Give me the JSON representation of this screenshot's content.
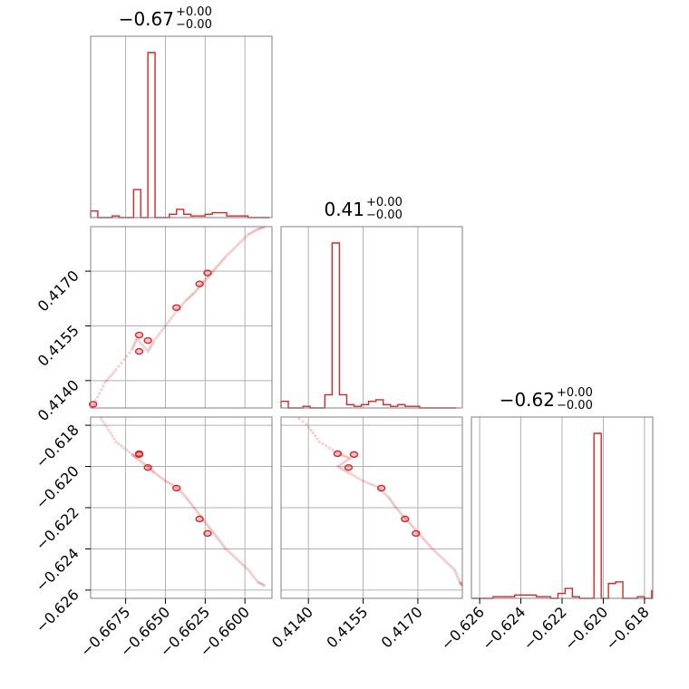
{
  "figure": {
    "accent_color": "#d62728"
  },
  "chart_data": {
    "type": "corner",
    "parameters": [
      {
        "title_value": "−0.67",
        "title_plus": "+0.00",
        "title_minus": "−0.00",
        "range": [
          -0.6697,
          -0.6583
        ],
        "ticks": [
          {
            "value": -0.6675,
            "label": "−0.6675"
          },
          {
            "value": -0.665,
            "label": "−0.6650"
          },
          {
            "value": -0.6625,
            "label": "−0.6625"
          },
          {
            "value": -0.66,
            "label": "−0.6600"
          }
        ],
        "hist_edges": [
          -0.6697,
          -0.66925,
          -0.6688,
          -0.66835,
          -0.6679,
          -0.66745,
          -0.667,
          -0.66655,
          -0.6661,
          -0.66565,
          -0.6652,
          -0.66475,
          -0.6643,
          -0.66385,
          -0.6634,
          -0.66295,
          -0.6625,
          -0.66205,
          -0.6616,
          -0.66115,
          -0.6607,
          -0.66025,
          -0.6598,
          -0.65935,
          -0.6589,
          -0.65845
        ],
        "hist_counts": [
          4,
          0,
          0,
          1,
          0,
          0,
          17,
          0,
          100,
          0,
          0,
          2,
          5,
          2,
          1,
          1,
          2,
          3,
          3,
          1,
          1,
          1,
          0,
          0,
          0
        ]
      },
      {
        "title_value": "0.41",
        "title_plus": "+0.00",
        "title_minus": "−0.00",
        "range": [
          0.41325,
          0.41822
        ],
        "ticks": [
          {
            "value": 0.414,
            "label": "0.4140"
          },
          {
            "value": 0.4155,
            "label": "0.4155"
          },
          {
            "value": 0.417,
            "label": "0.4170"
          }
        ],
        "hist_edges": [
          0.41325,
          0.41345,
          0.41365,
          0.41385,
          0.41405,
          0.41425,
          0.41445,
          0.41465,
          0.41485,
          0.41505,
          0.41525,
          0.41545,
          0.41565,
          0.41585,
          0.41605,
          0.41625,
          0.41645,
          0.41665,
          0.41685,
          0.41705,
          0.41725,
          0.41745,
          0.41765,
          0.41785,
          0.41805
        ],
        "hist_counts": [
          4,
          0,
          0,
          1,
          0,
          0,
          8,
          100,
          8,
          2,
          1,
          2,
          4,
          5,
          2,
          1,
          2,
          1,
          1,
          0,
          0,
          0,
          0,
          0
        ]
      },
      {
        "title_value": "−0.62",
        "title_plus": "+0.00",
        "title_minus": "−0.00",
        "range": [
          -0.6264,
          -0.6176
        ],
        "ticks": [
          {
            "value": -0.626,
            "label": "−0.626"
          },
          {
            "value": -0.624,
            "label": "−0.624"
          },
          {
            "value": -0.622,
            "label": "−0.622"
          },
          {
            "value": -0.62,
            "label": "−0.620"
          },
          {
            "value": -0.618,
            "label": "−0.618"
          }
        ],
        "hist_edges": [
          -0.6264,
          -0.62605,
          -0.6257,
          -0.62535,
          -0.625,
          -0.62465,
          -0.6243,
          -0.62395,
          -0.6236,
          -0.62325,
          -0.6229,
          -0.62255,
          -0.6222,
          -0.62185,
          -0.6215,
          -0.62115,
          -0.6208,
          -0.62045,
          -0.6201,
          -0.61975,
          -0.6194,
          -0.61905,
          -0.6187,
          -0.61835,
          -0.618,
          -0.61765
        ],
        "hist_counts": [
          0,
          0,
          0,
          1,
          1,
          1,
          2,
          2,
          2,
          1,
          1,
          0,
          3,
          6,
          1,
          0,
          0,
          100,
          0,
          9,
          10,
          0,
          0,
          1,
          0,
          5
        ]
      }
    ],
    "scatter_samples": [
      {
        "p0": -0.6695,
        "p1": 0.41335,
        "p2": -0.61715
      },
      {
        "p0": -0.6688,
        "p1": 0.41395,
        "p2": -0.61795
      },
      {
        "p0": -0.6681,
        "p1": 0.4143,
        "p2": -0.6188
      },
      {
        "p0": -0.6671,
        "p1": 0.41485,
        "p2": -0.6194
      },
      {
        "p0": -0.6668,
        "p1": 0.41515,
        "p2": -0.6196
      },
      {
        "p0": -0.6661,
        "p1": 0.4148,
        "p2": -0.62
      },
      {
        "p0": -0.6657,
        "p1": 0.4151,
        "p2": -0.6203
      },
      {
        "p0": -0.665,
        "p1": 0.4155,
        "p2": -0.6207
      },
      {
        "p0": -0.6643,
        "p1": 0.4159,
        "p2": -0.621
      },
      {
        "p0": -0.6637,
        "p1": 0.4162,
        "p2": -0.6215
      },
      {
        "p0": -0.6632,
        "p1": 0.4164,
        "p2": -0.622
      },
      {
        "p0": -0.6627,
        "p1": 0.41665,
        "p2": -0.6225
      },
      {
        "p0": -0.6622,
        "p1": 0.4169,
        "p2": -0.623
      },
      {
        "p0": -0.6617,
        "p1": 0.41715,
        "p2": -0.6235
      },
      {
        "p0": -0.6612,
        "p1": 0.4174,
        "p2": -0.624
      },
      {
        "p0": -0.6605,
        "p1": 0.4177,
        "p2": -0.6245
      },
      {
        "p0": -0.6598,
        "p1": 0.418,
        "p2": -0.625
      },
      {
        "p0": -0.6592,
        "p1": 0.41815,
        "p2": -0.6256
      },
      {
        "p0": -0.6587,
        "p1": 0.41822,
        "p2": -0.6258
      }
    ],
    "contour_blobs": [
      {
        "p0": -0.66955,
        "p1": 0.41335,
        "p2": -0.61715
      },
      {
        "p0": -0.66665,
        "p1": 0.41525,
        "p2": -0.61942
      },
      {
        "p0": -0.66665,
        "p1": 0.4148,
        "p2": -0.61938
      },
      {
        "p0": -0.6661,
        "p1": 0.4151,
        "p2": -0.62005
      },
      {
        "p0": -0.6643,
        "p1": 0.416,
        "p2": -0.62105
      },
      {
        "p0": -0.66285,
        "p1": 0.41665,
        "p2": -0.62255
      },
      {
        "p0": -0.66235,
        "p1": 0.41695,
        "p2": -0.62325
      }
    ]
  }
}
